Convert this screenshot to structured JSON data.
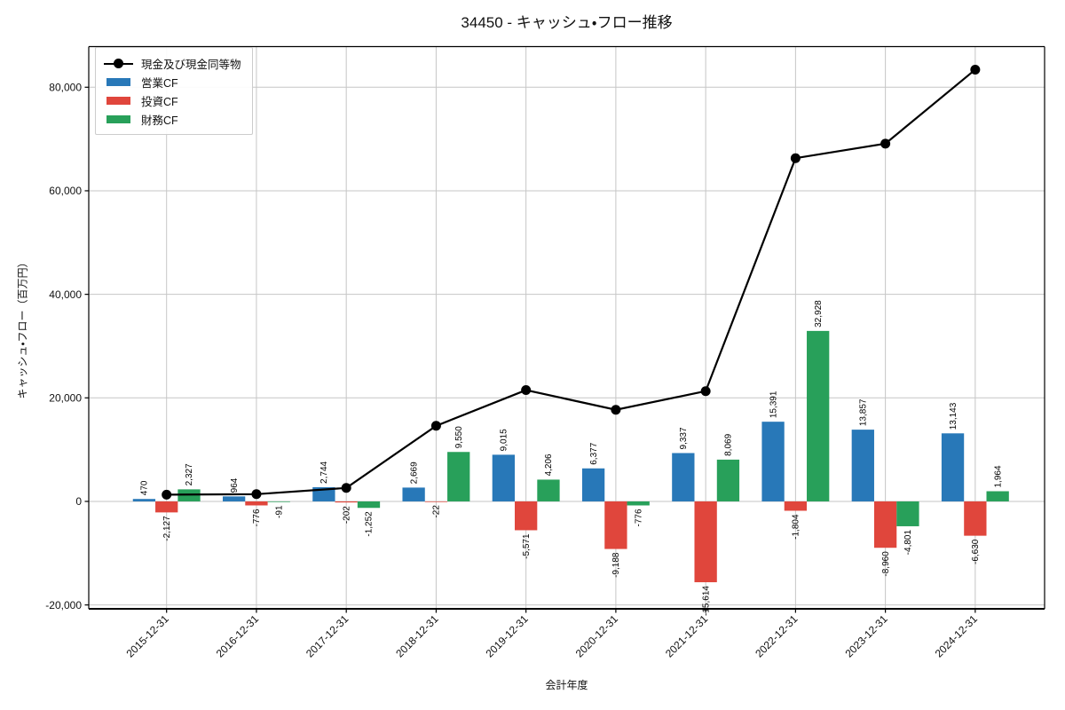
{
  "chart_data": {
    "type": "bar",
    "subtype": "grouped-bar-with-line-overlay",
    "title": "34450 - キャッシュ・フロー推移",
    "xlabel": "会計年度",
    "ylabel": "キャッシュ・フロー（百万円）",
    "categories": [
      "2015-12-31",
      "2016-12-31",
      "2017-12-31",
      "2018-12-31",
      "2019-12-31",
      "2020-12-31",
      "2021-12-31",
      "2022-12-31",
      "2023-12-31",
      "2024-12-31"
    ],
    "series": [
      {
        "name": "営業CF",
        "color": "#2878b8",
        "values": [
          470,
          964,
          2744,
          2669,
          9015,
          6377,
          9337,
          15391,
          13857,
          13143
        ]
      },
      {
        "name": "投資CF",
        "color": "#e0463c",
        "values": [
          -2127,
          -776,
          -202,
          -22,
          -5571,
          -9188,
          -15614,
          -1804,
          -8960,
          -6630
        ]
      },
      {
        "name": "財務CF",
        "color": "#28a05a",
        "values": [
          2327,
          -91,
          -1252,
          9550,
          4206,
          -776,
          8069,
          32928,
          -4801,
          1964
        ]
      }
    ],
    "line_series": {
      "name": "現金及び現金同等物",
      "color": "#000000",
      "marker": "circle",
      "values_are_estimated_from_gridlines": true,
      "values": [
        1300,
        1400,
        2600,
        14600,
        21500,
        17700,
        21300,
        66300,
        69100,
        83400
      ]
    },
    "yticks": [
      -20000,
      0,
      20000,
      40000,
      60000,
      80000
    ],
    "ylim": [
      -20750,
      87850
    ],
    "grid": true,
    "legend_position": "upper left",
    "legend_entries": [
      "現金及び現金同等物",
      "営業CF",
      "投資CF",
      "財務CF"
    ]
  },
  "colors": {
    "background": "#ffffff",
    "grid": "#c6c6c6",
    "axis": "#000000",
    "legend_border": "#cccccc",
    "text": "#111111"
  }
}
